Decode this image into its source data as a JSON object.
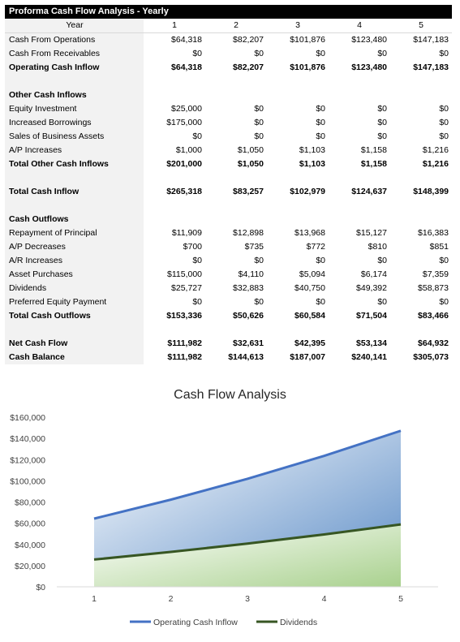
{
  "sheet_title": "Proforma Cash Flow Analysis - Yearly",
  "header": {
    "label": "Year",
    "years": [
      "1",
      "2",
      "3",
      "4",
      "5"
    ]
  },
  "rows": [
    {
      "label": "Cash From Operations",
      "values": [
        "$64,318",
        "$82,207",
        "$101,876",
        "$123,480",
        "$147,183"
      ],
      "bold": false
    },
    {
      "label": "Cash From Receivables",
      "values": [
        "$0",
        "$0",
        "$0",
        "$0",
        "$0"
      ],
      "bold": false
    },
    {
      "label": "Operating Cash Inflow",
      "values": [
        "$64,318",
        "$82,207",
        "$101,876",
        "$123,480",
        "$147,183"
      ],
      "bold": true
    },
    {
      "label": "",
      "values": [
        "",
        "",
        "",
        "",
        ""
      ],
      "bold": false
    },
    {
      "label": "Other Cash Inflows",
      "values": [
        "",
        "",
        "",
        "",
        ""
      ],
      "bold": true
    },
    {
      "label": "Equity Investment",
      "values": [
        "$25,000",
        "$0",
        "$0",
        "$0",
        "$0"
      ],
      "bold": false
    },
    {
      "label": "Increased Borrowings",
      "values": [
        "$175,000",
        "$0",
        "$0",
        "$0",
        "$0"
      ],
      "bold": false
    },
    {
      "label": "Sales of Business Assets",
      "values": [
        "$0",
        "$0",
        "$0",
        "$0",
        "$0"
      ],
      "bold": false
    },
    {
      "label": "A/P Increases",
      "values": [
        "$1,000",
        "$1,050",
        "$1,103",
        "$1,158",
        "$1,216"
      ],
      "bold": false
    },
    {
      "label": "Total Other Cash Inflows",
      "values": [
        "$201,000",
        "$1,050",
        "$1,103",
        "$1,158",
        "$1,216"
      ],
      "bold": true
    },
    {
      "label": "",
      "values": [
        "",
        "",
        "",
        "",
        ""
      ],
      "bold": false
    },
    {
      "label": "Total Cash Inflow",
      "values": [
        "$265,318",
        "$83,257",
        "$102,979",
        "$124,637",
        "$148,399"
      ],
      "bold": true
    },
    {
      "label": "",
      "values": [
        "",
        "",
        "",
        "",
        ""
      ],
      "bold": false
    },
    {
      "label": "Cash Outflows",
      "values": [
        "",
        "",
        "",
        "",
        ""
      ],
      "bold": true
    },
    {
      "label": "Repayment of Principal",
      "values": [
        "$11,909",
        "$12,898",
        "$13,968",
        "$15,127",
        "$16,383"
      ],
      "bold": false
    },
    {
      "label": "A/P Decreases",
      "values": [
        "$700",
        "$735",
        "$772",
        "$810",
        "$851"
      ],
      "bold": false
    },
    {
      "label": "A/R Increases",
      "values": [
        "$0",
        "$0",
        "$0",
        "$0",
        "$0"
      ],
      "bold": false
    },
    {
      "label": "Asset Purchases",
      "values": [
        "$115,000",
        "$4,110",
        "$5,094",
        "$6,174",
        "$7,359"
      ],
      "bold": false
    },
    {
      "label": "Dividends",
      "values": [
        "$25,727",
        "$32,883",
        "$40,750",
        "$49,392",
        "$58,873"
      ],
      "bold": false
    },
    {
      "label": "Preferred Equity Payment",
      "values": [
        "$0",
        "$0",
        "$0",
        "$0",
        "$0"
      ],
      "bold": false
    },
    {
      "label": "Total Cash Outflows",
      "values": [
        "$153,336",
        "$50,626",
        "$60,584",
        "$71,504",
        "$83,466"
      ],
      "bold": true
    },
    {
      "label": "",
      "values": [
        "",
        "",
        "",
        "",
        ""
      ],
      "bold": false
    },
    {
      "label": "Net Cash Flow",
      "values": [
        "$111,982",
        "$32,631",
        "$42,395",
        "$53,134",
        "$64,932"
      ],
      "bold": true
    },
    {
      "label": "Cash Balance",
      "values": [
        "$111,982",
        "$144,613",
        "$187,007",
        "$240,141",
        "$305,073"
      ],
      "bold": true
    }
  ],
  "chart_data": {
    "type": "area",
    "title": "Cash Flow Analysis",
    "x": [
      1,
      2,
      3,
      4,
      5
    ],
    "x_tick_labels": [
      "1",
      "2",
      "3",
      "4",
      "5"
    ],
    "y_tick_labels": [
      "$0",
      "$20,000",
      "$40,000",
      "$60,000",
      "$80,000",
      "$100,000",
      "$120,000",
      "$140,000",
      "$160,000"
    ],
    "ylim": [
      0,
      160000
    ],
    "y_step": 20000,
    "grid": false,
    "legend": "bottom",
    "series": [
      {
        "name": "Operating Cash Inflow",
        "values": [
          64318,
          82207,
          101876,
          123480,
          147183
        ],
        "color": "#4472c4"
      },
      {
        "name": "Dividends",
        "values": [
          25727,
          32883,
          40750,
          49392,
          58873
        ],
        "color": "#375623"
      }
    ]
  }
}
